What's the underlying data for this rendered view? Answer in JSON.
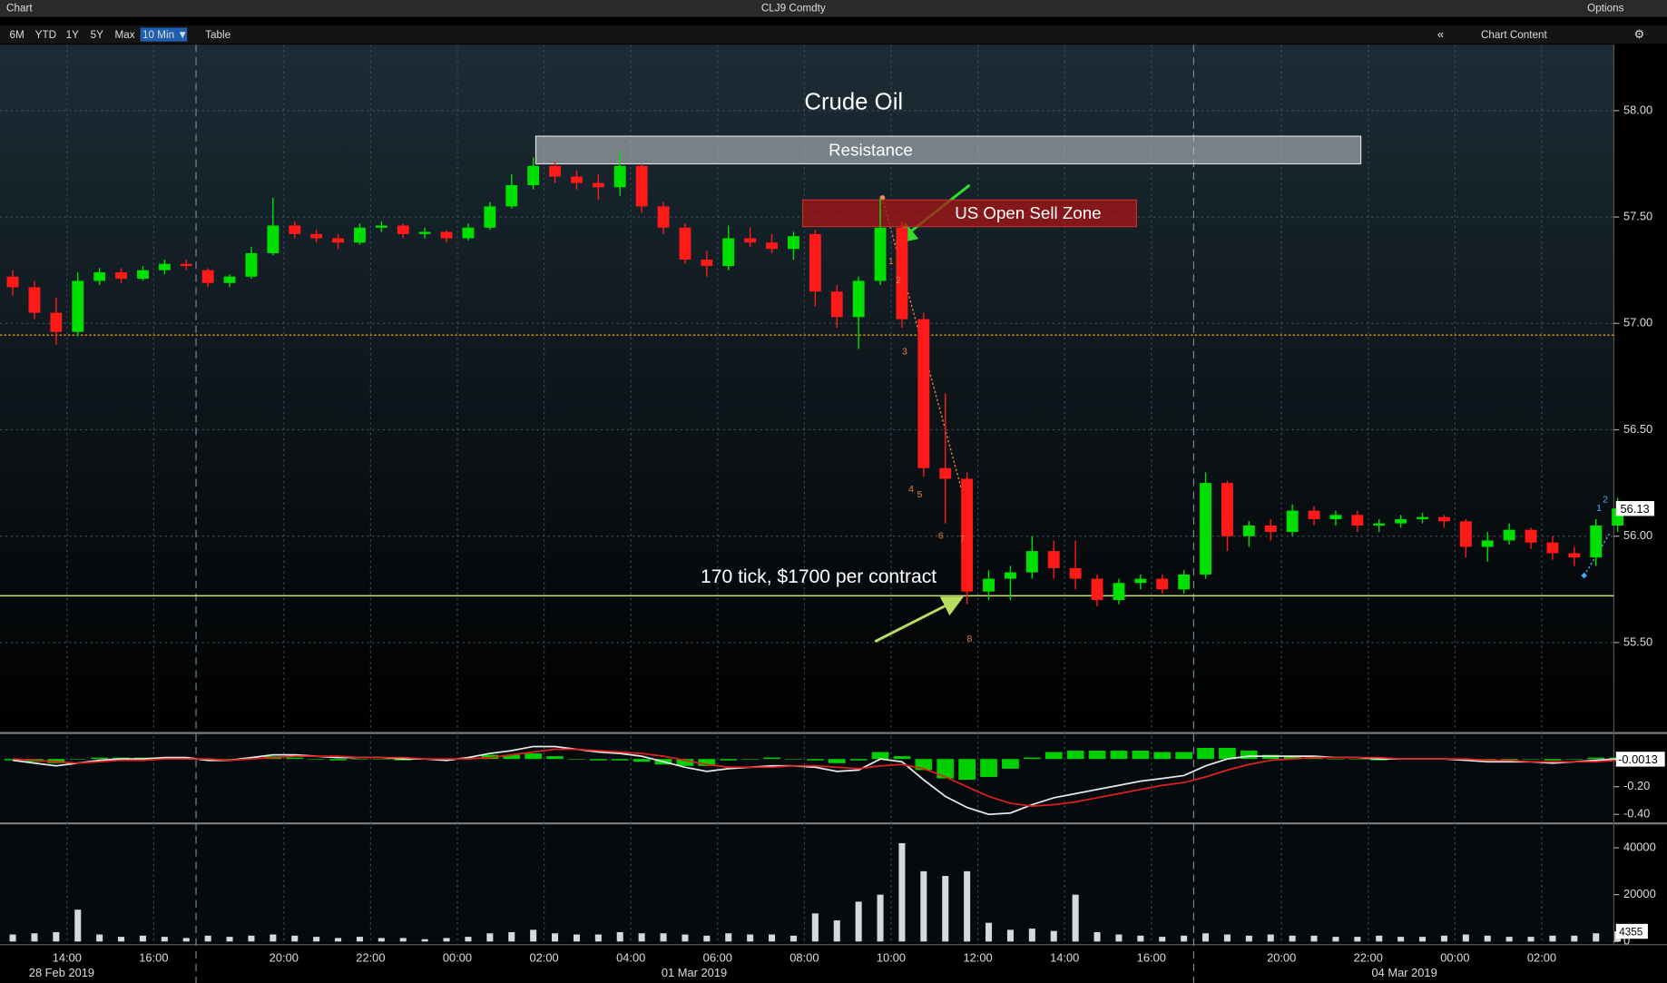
{
  "toolbar": {
    "title": "Chart",
    "security": "CLJ9 Comdty",
    "options": "Options",
    "ranges": [
      "6M",
      "YTD",
      "1Y",
      "5Y",
      "Max",
      "10 Min ▼"
    ],
    "table": "Table",
    "content": "Chart Content"
  },
  "chart_data": [
    {
      "type": "candlestick",
      "title": "Crude Oil",
      "up_color": "#00e000",
      "down_color": "#ff1a1a",
      "categories": [
        null,
        null,
        null,
        "14:00",
        null,
        null,
        null,
        "16:00",
        null,
        null,
        null,
        null,
        null,
        "20:00",
        null,
        null,
        null,
        "22:00",
        null,
        null,
        null,
        "00:00",
        null,
        null,
        null,
        "02:00",
        null,
        null,
        null,
        "04:00",
        null,
        null,
        null,
        "06:00",
        null,
        null,
        null,
        "08:00",
        null,
        null,
        null,
        "10:00",
        null,
        null,
        null,
        "12:00",
        null,
        null,
        null,
        "14:00",
        null,
        null,
        null,
        "16:00",
        null,
        null,
        null,
        null,
        null,
        "20:00",
        null,
        null,
        null,
        "22:00",
        null,
        null,
        null,
        "00:00",
        null,
        null,
        null,
        "02:00",
        null,
        null,
        null
      ],
      "date_labels": [
        "28 Feb 2019",
        "01 Mar 2019",
        "04 Mar 2019"
      ],
      "open": [
        57.22,
        57.17,
        57.05,
        56.96,
        57.2,
        57.24,
        57.21,
        57.25,
        57.28,
        57.25,
        57.19,
        57.22,
        57.33,
        57.46,
        57.42,
        57.4,
        57.38,
        57.45,
        57.46,
        57.42,
        57.43,
        57.4,
        57.45,
        57.55,
        57.65,
        57.74,
        57.69,
        57.66,
        57.64,
        57.74,
        57.55,
        57.45,
        57.3,
        57.27,
        57.4,
        57.38,
        57.35,
        57.42,
        57.15,
        57.03,
        57.2,
        57.45,
        57.02,
        56.32,
        56.27,
        55.74,
        55.8,
        55.83,
        55.93,
        55.85,
        55.8,
        55.7,
        55.78,
        55.8,
        55.75,
        55.82,
        56.25,
        56,
        56.05,
        56.02,
        56.12,
        56.08,
        56.1,
        56.05,
        56.06,
        56.08,
        56.09,
        56.07,
        55.95,
        55.98,
        56.03,
        55.97,
        55.92,
        55.9,
        56.05
      ],
      "high": [
        57.25,
        57.2,
        57.12,
        57.24,
        57.26,
        57.26,
        57.27,
        57.3,
        57.3,
        57.26,
        57.23,
        57.36,
        57.59,
        57.48,
        57.44,
        57.42,
        57.47,
        57.48,
        57.47,
        57.45,
        57.44,
        57.47,
        57.57,
        57.7,
        57.78,
        57.76,
        57.72,
        57.7,
        57.81,
        57.75,
        57.57,
        57.47,
        57.34,
        57.46,
        57.45,
        57.42,
        57.43,
        57.44,
        57.18,
        57.22,
        57.59,
        57.48,
        57.05,
        56.67,
        56.3,
        55.84,
        55.86,
        56,
        55.98,
        55.98,
        55.82,
        55.8,
        55.82,
        55.82,
        55.84,
        56.3,
        56.26,
        56.07,
        56.08,
        56.15,
        56.14,
        56.12,
        56.12,
        56.08,
        56.1,
        56.11,
        56.1,
        56.08,
        56.02,
        56.06,
        56.04,
        56,
        55.95,
        56.08,
        56.18
      ],
      "low": [
        57.13,
        57.02,
        56.9,
        56.94,
        57.18,
        57.19,
        57.2,
        57.23,
        57.25,
        57.17,
        57.17,
        57.21,
        57.32,
        57.4,
        57.38,
        57.35,
        57.37,
        57.43,
        57.4,
        57.4,
        57.38,
        57.39,
        57.44,
        57.54,
        57.63,
        57.66,
        57.63,
        57.58,
        57.6,
        57.52,
        57.42,
        57.28,
        57.22,
        57.25,
        57.36,
        57.33,
        57.3,
        57.08,
        56.98,
        56.88,
        57.18,
        56.98,
        56.28,
        56.06,
        55.68,
        55.7,
        55.7,
        55.8,
        55.8,
        55.75,
        55.67,
        55.68,
        55.75,
        55.73,
        55.73,
        55.8,
        55.93,
        55.95,
        55.98,
        56,
        56.05,
        56.05,
        56.02,
        56.02,
        56.04,
        56.06,
        56.04,
        55.9,
        55.88,
        55.96,
        55.94,
        55.89,
        55.86,
        55.86,
        56.02
      ],
      "close": [
        57.17,
        57.05,
        56.96,
        57.2,
        57.24,
        57.21,
        57.25,
        57.28,
        57.27,
        57.19,
        57.22,
        57.33,
        57.46,
        57.42,
        57.4,
        57.38,
        57.45,
        57.46,
        57.42,
        57.43,
        57.4,
        57.45,
        57.55,
        57.65,
        57.74,
        57.69,
        57.66,
        57.64,
        57.74,
        57.55,
        57.45,
        57.3,
        57.27,
        57.4,
        57.38,
        57.35,
        57.41,
        57.15,
        57.03,
        57.2,
        57.45,
        57.02,
        56.32,
        56.27,
        55.74,
        55.8,
        55.83,
        55.93,
        55.85,
        55.8,
        55.7,
        55.78,
        55.8,
        55.75,
        55.82,
        56.25,
        56,
        56.05,
        56.02,
        56.12,
        56.08,
        56.1,
        56.05,
        56.06,
        56.08,
        56.09,
        56.07,
        55.95,
        55.98,
        56.03,
        55.97,
        55.92,
        55.9,
        56.05,
        56.13
      ],
      "ylim": [
        55.08,
        58.31
      ],
      "yticks": [
        {
          "value": 58,
          "label": "58.00"
        },
        {
          "value": 57.5,
          "label": "57.50"
        },
        {
          "value": 57,
          "label": "57.00"
        },
        {
          "value": 56.5,
          "label": "56.50"
        },
        {
          "value": 56,
          "label": "56.00"
        },
        {
          "value": 55.5,
          "label": "55.50"
        }
      ],
      "grid": true,
      "resistance": {
        "label": "Resistance",
        "low": 57.75,
        "high": 57.88
      },
      "sell_zone": {
        "label": "US Open Sell Zone",
        "low": 57.455,
        "high": 57.58
      },
      "note": "170 tick, $1700 per contract",
      "levels": [
        {
          "value": 56.945,
          "color": "#e6a000"
        },
        {
          "value": 55.72,
          "color": "#c8e07a"
        }
      ],
      "wave_labels": [
        "1",
        "2",
        "3",
        "4",
        "5",
        "6",
        "7",
        "8"
      ],
      "end_labels": [
        "1",
        "2"
      ]
    },
    {
      "type": "line",
      "series": [
        {
          "name": "MACD",
          "color": "#e8e8e8",
          "values": [
            -0.01,
            -0.03,
            -0.05,
            -0.03,
            -0.01,
            0,
            0,
            0.01,
            0.01,
            -0.01,
            -0.01,
            0.01,
            0.03,
            0.03,
            0.02,
            0.01,
            0.01,
            0.01,
            0,
            0,
            -0.01,
            0.01,
            0.04,
            0.06,
            0.09,
            0.09,
            0.07,
            0.05,
            0.04,
            0.02,
            -0.02,
            -0.06,
            -0.09,
            -0.07,
            -0.06,
            -0.05,
            -0.05,
            -0.06,
            -0.09,
            -0.08,
            0,
            -0.02,
            -0.15,
            -0.27,
            -0.35,
            -0.4,
            -0.39,
            -0.33,
            -0.28,
            -0.25,
            -0.22,
            -0.19,
            -0.16,
            -0.14,
            -0.12,
            -0.05,
            0,
            0.02,
            0.02,
            0.02,
            0.02,
            0.01,
            0.01,
            0,
            0,
            0,
            0,
            -0.01,
            -0.02,
            -0.02,
            -0.02,
            -0.03,
            -0.02,
            -0.01,
            0
          ]
        },
        {
          "name": "Signal",
          "color": "#e02020",
          "values": [
            0,
            -0.01,
            -0.02,
            -0.03,
            -0.02,
            -0.01,
            -0.01,
            0,
            0,
            0,
            -0.01,
            0,
            0.01,
            0.02,
            0.02,
            0.02,
            0.01,
            0.01,
            0.01,
            0,
            0,
            0,
            0.01,
            0.03,
            0.05,
            0.07,
            0.07,
            0.06,
            0.05,
            0.04,
            0.02,
            -0.01,
            -0.04,
            -0.06,
            -0.06,
            -0.06,
            -0.05,
            -0.05,
            -0.06,
            -0.07,
            -0.05,
            -0.04,
            -0.07,
            -0.13,
            -0.2,
            -0.27,
            -0.32,
            -0.34,
            -0.33,
            -0.31,
            -0.28,
            -0.25,
            -0.22,
            -0.19,
            -0.17,
            -0.13,
            -0.08,
            -0.04,
            -0.01,
            0,
            0.01,
            0.01,
            0.01,
            0.01,
            0,
            0,
            0,
            0,
            -0.01,
            -0.01,
            -0.02,
            -0.02,
            -0.02,
            -0.02,
            -0.01
          ]
        }
      ],
      "histogram": [
        -0.01,
        -0.02,
        -0.03,
        0,
        0.01,
        0.01,
        0.01,
        0.01,
        0.01,
        -0.01,
        0,
        0.01,
        0.02,
        0.01,
        0,
        -0.01,
        0,
        0,
        -0.01,
        0,
        -0.01,
        0.01,
        0.03,
        0.03,
        0.04,
        0.02,
        0,
        -0.01,
        -0.01,
        -0.02,
        -0.04,
        -0.05,
        -0.05,
        -0.01,
        0,
        0.01,
        0,
        -0.01,
        -0.03,
        -0.01,
        0.05,
        0.02,
        -0.08,
        -0.14,
        -0.15,
        -0.13,
        -0.07,
        0.01,
        0.05,
        0.06,
        0.06,
        0.06,
        0.06,
        0.05,
        0.05,
        0.08,
        0.08,
        0.06,
        0.03,
        0.02,
        0.01,
        0,
        0,
        -0.01,
        0,
        0,
        0,
        -0.01,
        -0.01,
        -0.01,
        0,
        -0.01,
        0,
        0.01,
        0.01
      ],
      "hist_color": "#00d000",
      "last": -0.0013,
      "ylim": [
        -0.45,
        0.18
      ],
      "yticks": [
        {
          "value": -0.2,
          "label": "-0.20"
        },
        {
          "value": -0.4,
          "label": "-0.40"
        }
      ]
    },
    {
      "type": "bar",
      "color": "#d8d8d8",
      "values": [
        3000,
        3500,
        4000,
        13600,
        3000,
        2000,
        2500,
        2000,
        1500,
        2500,
        2000,
        2500,
        3000,
        2500,
        2000,
        1500,
        2000,
        1500,
        1500,
        1000,
        1500,
        2000,
        3500,
        4000,
        5000,
        3500,
        3000,
        3000,
        4000,
        3500,
        3500,
        3000,
        2500,
        3500,
        3000,
        3000,
        2500,
        12000,
        9000,
        17000,
        20000,
        42000,
        30000,
        28000,
        30000,
        8000,
        5000,
        5500,
        4500,
        20000,
        4000,
        3000,
        2500,
        2000,
        2500,
        3500,
        3000,
        2500,
        3000,
        2500,
        2500,
        2000,
        2000,
        2500,
        2000,
        2000,
        2500,
        3000,
        2500,
        2000,
        2000,
        2500,
        2500,
        3500,
        4355
      ],
      "ylim": [
        0,
        48600
      ],
      "yticks": [
        0,
        20000,
        40000
      ]
    }
  ]
}
